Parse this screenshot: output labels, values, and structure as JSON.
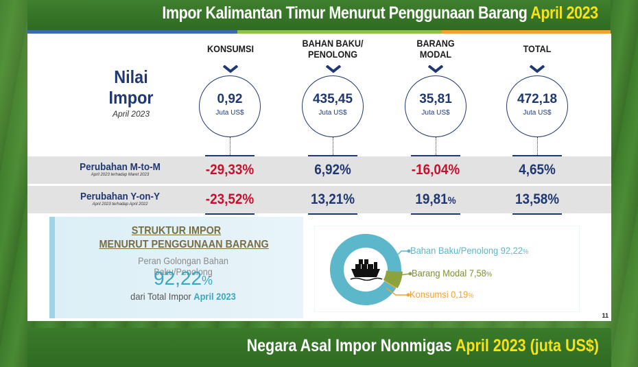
{
  "header": {
    "title_main": "Impor Kalimantan Timur Menurut Penggunaan Barang",
    "title_period": "April 2023"
  },
  "stripe_colors": [
    "#3b6ab1",
    "#8dc14a",
    "#f2a22f"
  ],
  "nilai": {
    "line1": "Nilai",
    "line2": "Impor",
    "period": "April 2023"
  },
  "columns": [
    {
      "head_line1": "KONSUMSI",
      "head_line2": "",
      "value": "0,92",
      "unit": "Juta US$",
      "mtom": "-29,33%",
      "yony": "-23,52%",
      "mtom_color": "#c8102e",
      "yony_color": "#c8102e"
    },
    {
      "head_line1": "BAHAN BAKU/",
      "head_line2": "PENOLONG",
      "value": "435,45",
      "unit": "Juta US$",
      "mtom": "6,92%",
      "yony": "13,21%",
      "mtom_color": "#1f3872",
      "yony_color": "#1f3872"
    },
    {
      "head_line1": "BARANG",
      "head_line2": "MODAL",
      "value": "35,81",
      "unit": "Juta US$",
      "mtom": "-16,04%",
      "yony": "19,81",
      "yony_pct": "%",
      "mtom_color": "#c8102e",
      "yony_color": "#1f3872"
    },
    {
      "head_line1": "TOTAL",
      "head_line2": "",
      "value": "472,18",
      "unit": "Juta US$",
      "mtom": "4,65%",
      "yony": "13,58%",
      "mtom_color": "#1f3872",
      "yony_color": "#1f3872"
    }
  ],
  "rows": {
    "mtom": {
      "label": "Perubahan M-to-M",
      "sub": "April 2023 terhadap Maret 2023"
    },
    "yony": {
      "label": "Perubahan Y-on-Y",
      "sub": "April 2023 terhadap April 2022"
    }
  },
  "struktur": {
    "title1": "STRUKTUR IMPOR",
    "title2": "MENURUT PENGGUNAAN BARANG",
    "peran": "Peran Golongan Bahan Baku/Penolong",
    "share": "92,22",
    "share_pct": "%",
    "dari": "dari Total Impor",
    "dari_period": "April 2023"
  },
  "donut": {
    "slices": [
      {
        "label": "Bahan Baku/Penolong",
        "value": "92,22",
        "pct": "%",
        "share": 92.22,
        "color": "#5bb7c9"
      },
      {
        "label": "Barang Modal",
        "value": "7,58",
        "pct": "%",
        "share": 7.58,
        "color": "#8aa33c"
      },
      {
        "label": "Konsumsi",
        "value": "0,19",
        "pct": "%",
        "share": 0.19,
        "color": "#f2a22f"
      }
    ]
  },
  "page_number": "11",
  "footer": {
    "title_main": "Negara Asal Impor Nonmigas",
    "title_period": "April 2023 (juta US$)"
  }
}
